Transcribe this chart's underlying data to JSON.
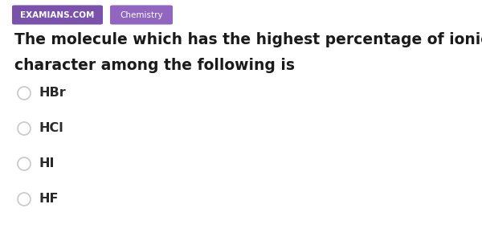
{
  "bg_color": "#ffffff",
  "tag1_text": "EXAMIANS.COM",
  "tag1_bg": "#7b52ab",
  "tag1_fg": "#ffffff",
  "tag2_text": "Chemistry",
  "tag2_bg": "#9166c0",
  "tag2_fg": "#ffffff",
  "question_line1": "The molecule which has the highest percentage of ionic",
  "question_line2": "character among the following is",
  "options": [
    "HBr",
    "HCl",
    "HI",
    "HF"
  ],
  "question_color": "#1a1a1a",
  "option_color": "#2a2a2a",
  "circle_edge_color": "#c8c8c8",
  "circle_face_color": "#ffffff",
  "tag_fontsize": 7.5,
  "question_fontsize": 13.5,
  "option_fontsize": 11.5,
  "fig_width": 6.0,
  "fig_height": 3.1,
  "dpi": 100
}
